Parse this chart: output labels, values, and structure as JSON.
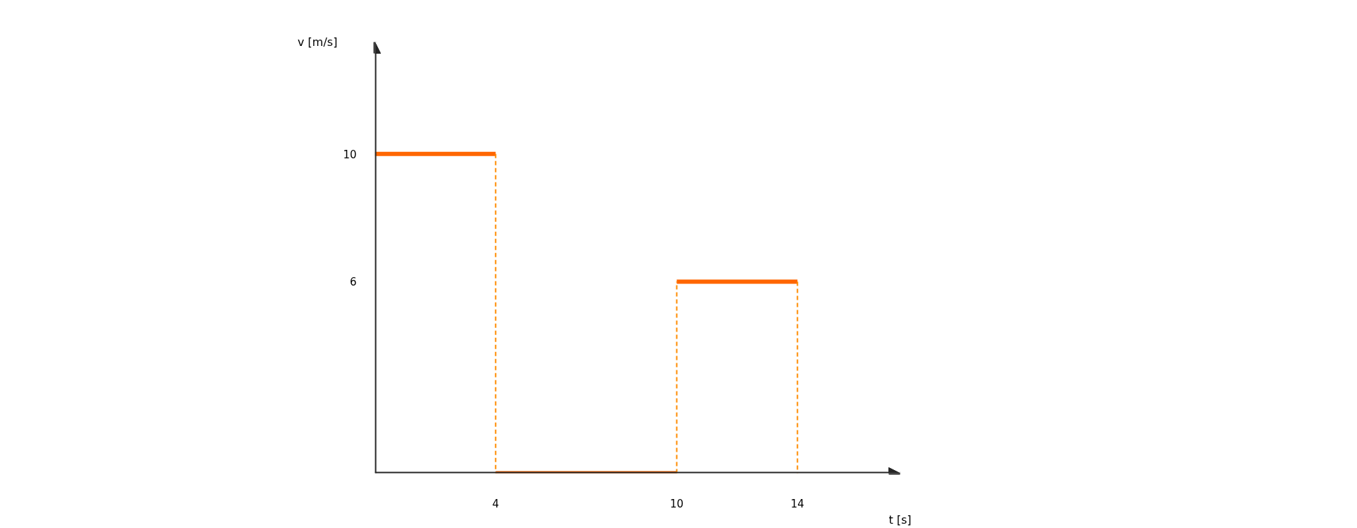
{
  "chart_data": {
    "type": "line",
    "xlabel": "t [s]",
    "ylabel": "v [m/s]",
    "series": [
      {
        "color": "#ff6600",
        "line_style": "solid",
        "x": [
          0,
          4,
          null,
          4,
          10,
          null,
          10,
          14
        ],
        "values": [
          10,
          10,
          null,
          0,
          0,
          null,
          6,
          6
        ]
      },
      {
        "color": "#ff8c00",
        "line_style": "dashed",
        "x": [
          4,
          4,
          null,
          10,
          10,
          null,
          14,
          14
        ],
        "values": [
          10,
          0,
          null,
          0,
          6,
          null,
          6,
          0
        ]
      }
    ],
    "xlim": [
      0,
      17.4
    ],
    "ylim": [
      0,
      13.5
    ],
    "xticks": [
      4,
      10,
      14
    ],
    "yticks": [
      6,
      10
    ],
    "grid": false
  }
}
